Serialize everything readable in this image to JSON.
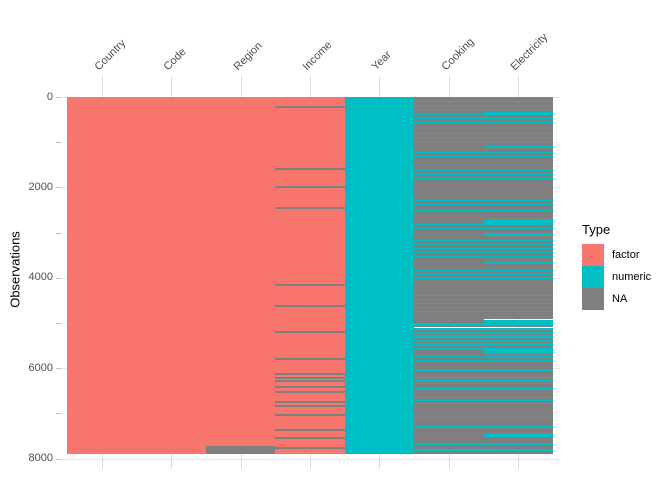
{
  "figure": {
    "ylabel": "Observations",
    "axis_text_color": "#4D4D4D",
    "colors": {
      "factor": "#F8766D",
      "numeric": "#00BFC4",
      "na": "#7F7F7F",
      "grid_major": "#E6E6E6",
      "grid_minor": "#F2F2F2",
      "tick": "#C0C0C0"
    },
    "legend": {
      "title": "Type",
      "entries": [
        {
          "label": "factor",
          "color": "#F8766D"
        },
        {
          "label": "numeric",
          "color": "#00BFC4"
        },
        {
          "label": "NA",
          "color": "#7F7F7F"
        }
      ]
    }
  },
  "chart_data": {
    "type": "heatmap",
    "subtype": "visdat-column-type-missingness",
    "title": "",
    "xlabel": "",
    "ylabel": "Observations",
    "categories": [
      "Country",
      "Code",
      "Region",
      "Income",
      "Year",
      "Cooking",
      "Electricity"
    ],
    "n_rows": 7906,
    "y_axis": {
      "reversed": true,
      "labeled_ticks": [
        0,
        2000,
        4000,
        6000,
        8000
      ],
      "minor_ticks": [
        1000,
        3000,
        5000,
        7000
      ],
      "range": [
        0,
        8000
      ]
    },
    "legend_position": "right",
    "grid": true,
    "type_codes": {
      "f": "factor",
      "n": "numeric",
      "na": "NA"
    },
    "column_segments": {
      "Country": [
        [
          0,
          7906,
          "f"
        ]
      ],
      "Code": [
        [
          0,
          7906,
          "f"
        ]
      ],
      "Region": [
        [
          0,
          7730,
          "f"
        ],
        [
          7730,
          7906,
          "na"
        ]
      ],
      "Income": [
        [
          0,
          207,
          "f"
        ],
        [
          207,
          235,
          "na"
        ],
        [
          235,
          1579,
          "f"
        ],
        [
          1579,
          1607,
          "na"
        ],
        [
          1607,
          1978,
          "f"
        ],
        [
          1978,
          2006,
          "na"
        ],
        [
          2006,
          2442,
          "f"
        ],
        [
          2442,
          2470,
          "na"
        ],
        [
          2470,
          4147,
          "f"
        ],
        [
          4147,
          4175,
          "na"
        ],
        [
          4175,
          4611,
          "f"
        ],
        [
          4611,
          4639,
          "na"
        ],
        [
          4639,
          5187,
          "f"
        ],
        [
          5187,
          5215,
          "na"
        ],
        [
          5215,
          5784,
          "f"
        ],
        [
          5784,
          5812,
          "na"
        ],
        [
          5812,
          6116,
          "f"
        ],
        [
          6116,
          6144,
          "na"
        ],
        [
          6144,
          6205,
          "f"
        ],
        [
          6205,
          6233,
          "na"
        ],
        [
          6233,
          6271,
          "f"
        ],
        [
          6271,
          6299,
          "na"
        ],
        [
          6299,
          6404,
          "f"
        ],
        [
          6404,
          6432,
          "na"
        ],
        [
          6432,
          6514,
          "f"
        ],
        [
          6514,
          6542,
          "na"
        ],
        [
          6542,
          6736,
          "f"
        ],
        [
          6736,
          6764,
          "na"
        ],
        [
          6764,
          6824,
          "f"
        ],
        [
          6824,
          6852,
          "na"
        ],
        [
          6852,
          7023,
          "f"
        ],
        [
          7023,
          7051,
          "na"
        ],
        [
          7051,
          7355,
          "f"
        ],
        [
          7355,
          7383,
          "na"
        ],
        [
          7383,
          7532,
          "f"
        ],
        [
          7532,
          7560,
          "na"
        ],
        [
          7560,
          7754,
          "f"
        ],
        [
          7754,
          7782,
          "na"
        ],
        [
          7782,
          7906,
          "f"
        ]
      ],
      "Year": [
        [
          0,
          7906,
          "n"
        ]
      ],
      "Cooking": [
        [
          0,
          33,
          "n"
        ],
        [
          33,
          89,
          "na"
        ],
        [
          89,
          117,
          "n"
        ],
        [
          117,
          177,
          "na"
        ],
        [
          177,
          206,
          "n"
        ],
        [
          206,
          266,
          "na"
        ],
        [
          266,
          294,
          "n"
        ],
        [
          294,
          376,
          "na"
        ],
        [
          376,
          405,
          "n"
        ],
        [
          405,
          465,
          "na"
        ],
        [
          465,
          494,
          "n"
        ],
        [
          494,
          553,
          "na"
        ],
        [
          553,
          582,
          "n"
        ],
        [
          582,
          797,
          "na"
        ],
        [
          797,
          825,
          "n"
        ],
        [
          825,
          885,
          "na"
        ],
        [
          885,
          914,
          "n"
        ],
        [
          914,
          974,
          "na"
        ],
        [
          974,
          1002,
          "n"
        ],
        [
          1002,
          1217,
          "na"
        ],
        [
          1217,
          1246,
          "n"
        ],
        [
          1246,
          1306,
          "na"
        ],
        [
          1306,
          1334,
          "n"
        ],
        [
          1334,
          1615,
          "na"
        ],
        [
          1615,
          1644,
          "n"
        ],
        [
          1644,
          1704,
          "na"
        ],
        [
          1704,
          1732,
          "n"
        ],
        [
          1732,
          1793,
          "na"
        ],
        [
          1793,
          1821,
          "n"
        ],
        [
          1821,
          1903,
          "na"
        ],
        [
          1903,
          1931,
          "n"
        ],
        [
          1931,
          2279,
          "na"
        ],
        [
          2279,
          2308,
          "n"
        ],
        [
          2308,
          2368,
          "na"
        ],
        [
          2368,
          2396,
          "n"
        ],
        [
          2396,
          2500,
          "na"
        ],
        [
          2500,
          2529,
          "n"
        ],
        [
          2529,
          2810,
          "na"
        ],
        [
          2810,
          2839,
          "n"
        ],
        [
          2839,
          2899,
          "na"
        ],
        [
          2899,
          2928,
          "n"
        ],
        [
          2928,
          3164,
          "na"
        ],
        [
          3164,
          3193,
          "n"
        ],
        [
          3193,
          3253,
          "na"
        ],
        [
          3253,
          3281,
          "n"
        ],
        [
          3281,
          3341,
          "na"
        ],
        [
          3341,
          3370,
          "n"
        ],
        [
          3370,
          3430,
          "na"
        ],
        [
          3430,
          3459,
          "n"
        ],
        [
          3459,
          3519,
          "na"
        ],
        [
          3519,
          3547,
          "n"
        ],
        [
          3547,
          3828,
          "na"
        ],
        [
          3828,
          3857,
          "n"
        ],
        [
          3857,
          3917,
          "na"
        ],
        [
          3917,
          3945,
          "n"
        ],
        [
          3945,
          4005,
          "na"
        ],
        [
          4005,
          4034,
          "n"
        ],
        [
          4034,
          4382,
          "na"
        ],
        [
          4382,
          4410,
          "n"
        ],
        [
          4410,
          4470,
          "na"
        ],
        [
          4470,
          4499,
          "n"
        ],
        [
          4499,
          4559,
          "na"
        ],
        [
          4559,
          4587,
          "n"
        ],
        [
          4587,
          4647,
          "na"
        ],
        [
          4647,
          4676,
          "n"
        ],
        [
          4676,
          4736,
          "na"
        ],
        [
          4736,
          4765,
          "n"
        ],
        [
          4765,
          5001,
          "na"
        ],
        [
          5001,
          5068,
          "n"
        ],
        [
          5068,
          5101,
          "na"
        ],
        [
          5101,
          5156,
          "n"
        ],
        [
          5156,
          5190,
          "na"
        ],
        [
          5190,
          5245,
          "n"
        ],
        [
          5245,
          5278,
          "na"
        ],
        [
          5278,
          5333,
          "n"
        ],
        [
          5333,
          5367,
          "na"
        ],
        [
          5367,
          5422,
          "n"
        ],
        [
          5422,
          5455,
          "na"
        ],
        [
          5455,
          5510,
          "n"
        ],
        [
          5510,
          5544,
          "na"
        ],
        [
          5544,
          5599,
          "n"
        ],
        [
          5599,
          5732,
          "na"
        ],
        [
          5732,
          5760,
          "n"
        ],
        [
          5760,
          5820,
          "na"
        ],
        [
          5820,
          5864,
          "n"
        ],
        [
          5864,
          6026,
          "na"
        ],
        [
          6026,
          6057,
          "n"
        ],
        [
          6057,
          6190,
          "na"
        ],
        [
          6190,
          6219,
          "n"
        ],
        [
          6219,
          6263,
          "na"
        ],
        [
          6263,
          6292,
          "n"
        ],
        [
          6292,
          6329,
          "na"
        ],
        [
          6329,
          6358,
          "n"
        ],
        [
          6358,
          6447,
          "na"
        ],
        [
          6447,
          6476,
          "n"
        ],
        [
          6476,
          6633,
          "na"
        ],
        [
          6633,
          6661,
          "n"
        ],
        [
          6661,
          6705,
          "na"
        ],
        [
          6705,
          6734,
          "n"
        ],
        [
          6734,
          6765,
          "na"
        ],
        [
          6765,
          6793,
          "n"
        ],
        [
          6793,
          7074,
          "na"
        ],
        [
          7074,
          7103,
          "n"
        ],
        [
          7103,
          7273,
          "na"
        ],
        [
          7273,
          7324,
          "n"
        ],
        [
          7324,
          7663,
          "na"
        ],
        [
          7663,
          7696,
          "n"
        ],
        [
          7696,
          7796,
          "na"
        ],
        [
          7796,
          7825,
          "n"
        ],
        [
          7825,
          7906,
          "na"
        ]
      ],
      "Electricity": [
        [
          0,
          33,
          "n"
        ],
        [
          33,
          89,
          "na"
        ],
        [
          89,
          117,
          "n"
        ],
        [
          117,
          177,
          "na"
        ],
        [
          177,
          206,
          "n"
        ],
        [
          206,
          266,
          "na"
        ],
        [
          266,
          294,
          "n"
        ],
        [
          294,
          330,
          "na"
        ],
        [
          330,
          405,
          "n"
        ],
        [
          405,
          465,
          "na"
        ],
        [
          465,
          494,
          "n"
        ],
        [
          494,
          553,
          "na"
        ],
        [
          553,
          582,
          "n"
        ],
        [
          582,
          797,
          "na"
        ],
        [
          797,
          825,
          "n"
        ],
        [
          825,
          885,
          "na"
        ],
        [
          885,
          914,
          "n"
        ],
        [
          914,
          974,
          "na"
        ],
        [
          974,
          1002,
          "n"
        ],
        [
          1002,
          1084,
          "na"
        ],
        [
          1084,
          1130,
          "n"
        ],
        [
          1130,
          1217,
          "na"
        ],
        [
          1217,
          1246,
          "n"
        ],
        [
          1246,
          1306,
          "na"
        ],
        [
          1306,
          1334,
          "n"
        ],
        [
          1334,
          1615,
          "na"
        ],
        [
          1615,
          1644,
          "n"
        ],
        [
          1644,
          1704,
          "na"
        ],
        [
          1704,
          1732,
          "n"
        ],
        [
          1732,
          1793,
          "na"
        ],
        [
          1793,
          1821,
          "n"
        ],
        [
          1821,
          1903,
          "na"
        ],
        [
          1903,
          1931,
          "n"
        ],
        [
          1931,
          2279,
          "na"
        ],
        [
          2279,
          2308,
          "n"
        ],
        [
          2308,
          2368,
          "na"
        ],
        [
          2368,
          2396,
          "n"
        ],
        [
          2396,
          2500,
          "na"
        ],
        [
          2500,
          2529,
          "n"
        ],
        [
          2529,
          2700,
          "na"
        ],
        [
          2700,
          2839,
          "n"
        ],
        [
          2839,
          2899,
          "na"
        ],
        [
          2899,
          2928,
          "n"
        ],
        [
          2928,
          3010,
          "na"
        ],
        [
          3010,
          3075,
          "n"
        ],
        [
          3075,
          3164,
          "na"
        ],
        [
          3164,
          3193,
          "n"
        ],
        [
          3193,
          3253,
          "na"
        ],
        [
          3253,
          3281,
          "n"
        ],
        [
          3281,
          3341,
          "na"
        ],
        [
          3341,
          3370,
          "n"
        ],
        [
          3370,
          3430,
          "na"
        ],
        [
          3430,
          3459,
          "n"
        ],
        [
          3459,
          3519,
          "na"
        ],
        [
          3519,
          3547,
          "n"
        ],
        [
          3547,
          3651,
          "na"
        ],
        [
          3651,
          3700,
          "n"
        ],
        [
          3700,
          3828,
          "na"
        ],
        [
          3828,
          3857,
          "n"
        ],
        [
          3857,
          3917,
          "na"
        ],
        [
          3917,
          3945,
          "n"
        ],
        [
          3945,
          4005,
          "na"
        ],
        [
          4005,
          4034,
          "n"
        ],
        [
          4034,
          4382,
          "na"
        ],
        [
          4382,
          4410,
          "n"
        ],
        [
          4410,
          4470,
          "na"
        ],
        [
          4470,
          4499,
          "n"
        ],
        [
          4499,
          4559,
          "na"
        ],
        [
          4559,
          4587,
          "n"
        ],
        [
          4587,
          4647,
          "na"
        ],
        [
          4647,
          4676,
          "n"
        ],
        [
          4676,
          4736,
          "na"
        ],
        [
          4736,
          4765,
          "n"
        ],
        [
          4765,
          4924,
          "na"
        ],
        [
          4924,
          5068,
          "n"
        ],
        [
          5068,
          5101,
          "na"
        ],
        [
          5101,
          5156,
          "n"
        ],
        [
          5156,
          5190,
          "na"
        ],
        [
          5190,
          5245,
          "n"
        ],
        [
          5245,
          5278,
          "na"
        ],
        [
          5278,
          5333,
          "n"
        ],
        [
          5333,
          5367,
          "na"
        ],
        [
          5367,
          5422,
          "n"
        ],
        [
          5422,
          5455,
          "na"
        ],
        [
          5455,
          5510,
          "n"
        ],
        [
          5510,
          5544,
          "na"
        ],
        [
          5544,
          5599,
          "n"
        ],
        [
          5599,
          5687,
          "n"
        ],
        [
          5687,
          5732,
          "na"
        ],
        [
          5732,
          5760,
          "n"
        ],
        [
          5760,
          5820,
          "na"
        ],
        [
          5820,
          5864,
          "n"
        ],
        [
          5864,
          6026,
          "na"
        ],
        [
          6026,
          6057,
          "n"
        ],
        [
          6057,
          6190,
          "na"
        ],
        [
          6190,
          6219,
          "n"
        ],
        [
          6219,
          6263,
          "na"
        ],
        [
          6263,
          6292,
          "n"
        ],
        [
          6292,
          6329,
          "na"
        ],
        [
          6329,
          6358,
          "n"
        ],
        [
          6358,
          6447,
          "na"
        ],
        [
          6447,
          6476,
          "n"
        ],
        [
          6476,
          6633,
          "na"
        ],
        [
          6633,
          6661,
          "n"
        ],
        [
          6661,
          6705,
          "na"
        ],
        [
          6705,
          6734,
          "n"
        ],
        [
          6734,
          6765,
          "na"
        ],
        [
          6765,
          6793,
          "n"
        ],
        [
          6793,
          7074,
          "na"
        ],
        [
          7074,
          7103,
          "n"
        ],
        [
          7103,
          7273,
          "na"
        ],
        [
          7273,
          7324,
          "n"
        ],
        [
          7324,
          7428,
          "na"
        ],
        [
          7428,
          7517,
          "n"
        ],
        [
          7517,
          7663,
          "na"
        ],
        [
          7663,
          7696,
          "n"
        ],
        [
          7696,
          7796,
          "na"
        ],
        [
          7796,
          7825,
          "n"
        ],
        [
          7825,
          7906,
          "na"
        ]
      ]
    }
  }
}
